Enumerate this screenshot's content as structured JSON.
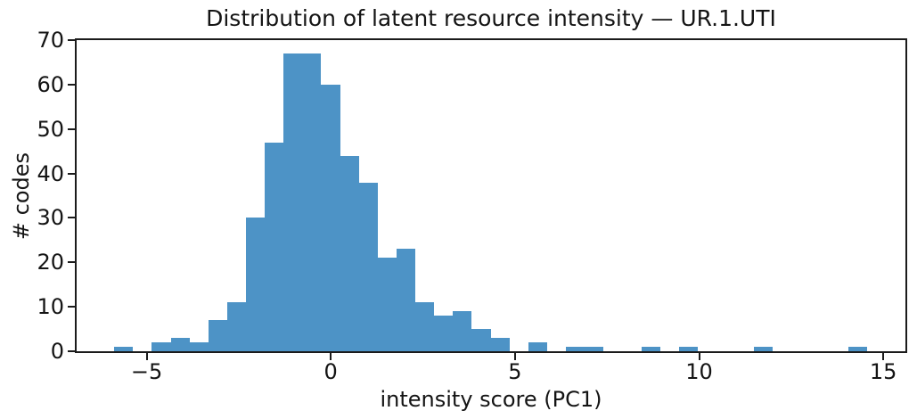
{
  "chart_data": {
    "type": "histogram",
    "title": "Distribution of latent resource intensity — UR.1.UTI",
    "xlabel": "intensity score (PC1)",
    "ylabel": "# codes",
    "bar_color": "#4d93c6",
    "axis_color": "#1b1b1b",
    "grid": false,
    "legend": null,
    "xlim": [
      -6.9,
      15.6
    ],
    "ylim": [
      0,
      70
    ],
    "xticks": [
      {
        "value": -5,
        "label": "−5"
      },
      {
        "value": 0,
        "label": "0"
      },
      {
        "value": 5,
        "label": "5"
      },
      {
        "value": 10,
        "label": "10"
      },
      {
        "value": 15,
        "label": "15"
      }
    ],
    "yticks": [
      {
        "value": 0,
        "label": "0"
      },
      {
        "value": 10,
        "label": "10"
      },
      {
        "value": 20,
        "label": "20"
      },
      {
        "value": 30,
        "label": "30"
      },
      {
        "value": 40,
        "label": "40"
      },
      {
        "value": 50,
        "label": "50"
      },
      {
        "value": 60,
        "label": "60"
      },
      {
        "value": 70,
        "label": "70"
      }
    ],
    "bins": {
      "start": -5.88,
      "width": 0.511,
      "count": 40
    },
    "counts": [
      1,
      0,
      2,
      3,
      2,
      7,
      11,
      30,
      47,
      67,
      67,
      60,
      44,
      38,
      21,
      23,
      11,
      8,
      9,
      5,
      3,
      0,
      2,
      0,
      1,
      1,
      0,
      0,
      1,
      0,
      1,
      0,
      0,
      0,
      1,
      0,
      0,
      0,
      0,
      1
    ]
  }
}
